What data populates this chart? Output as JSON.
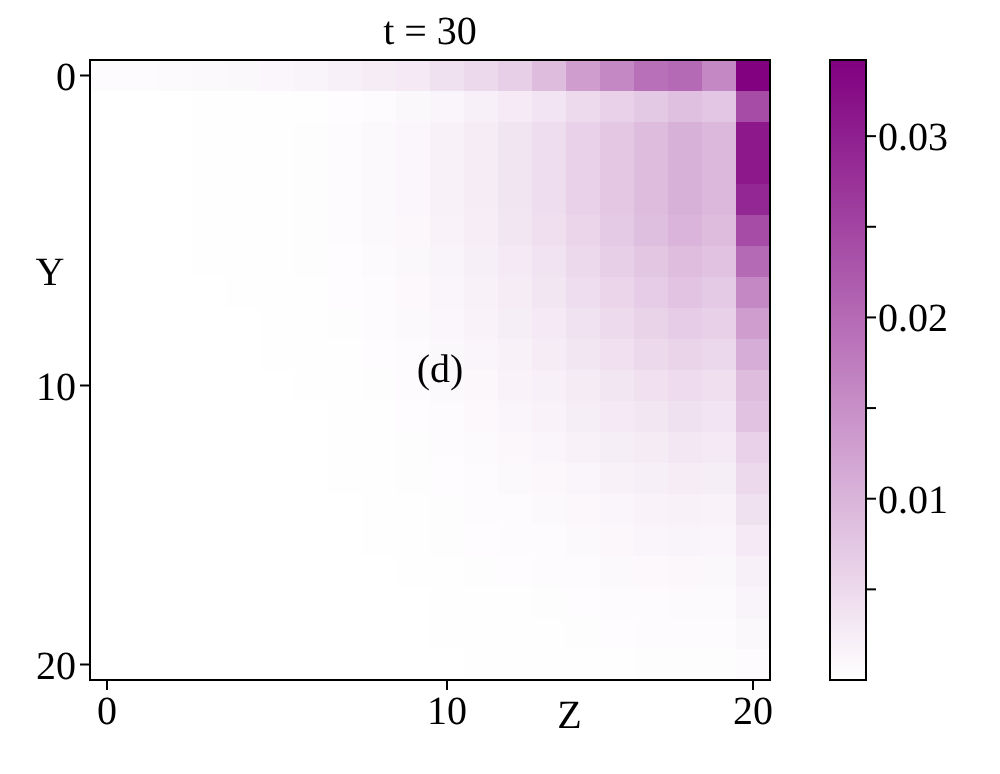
{
  "chart_data": {
    "type": "heatmap",
    "title": "t = 30",
    "xlabel": "Z",
    "ylabel": "Y",
    "annotations": [
      "(d)"
    ],
    "color": "#800080",
    "categories": [
      "0",
      null,
      null,
      null,
      null,
      null,
      null,
      null,
      null,
      null,
      "10",
      null,
      null,
      null,
      null,
      null,
      null,
      null,
      null,
      "20"
    ],
    "y_categories": [
      "0",
      null,
      null,
      null,
      null,
      null,
      null,
      null,
      null,
      null,
      "10",
      null,
      null,
      null,
      null,
      null,
      null,
      null,
      null,
      "20"
    ],
    "clim": [
      0,
      0.0342
    ],
    "cticks": [
      {
        "value": 0.005,
        "label": null
      },
      0.01,
      {
        "value": 0.015,
        "label": null
      },
      0.02,
      {
        "value": 0.025,
        "label": null
      },
      0.03
    ],
    "cells": [
      [
        0.0005,
        0.0006,
        0.0007,
        0.0008,
        0.001,
        0.0012,
        0.0015,
        0.002,
        0.0025,
        0.003,
        0.004,
        0.005,
        0.0065,
        0.009,
        0.013,
        0.016,
        0.019,
        0.02,
        0.016,
        0.034
      ],
      [
        0,
        0,
        0,
        0.0001,
        0.0001,
        0.0002,
        0.0002,
        0.0004,
        0.0006,
        0.001,
        0.0014,
        0.002,
        0.0028,
        0.0036,
        0.0048,
        0.006,
        0.0072,
        0.0084,
        0.0076,
        0.024
      ],
      [
        0,
        0,
        0,
        0.0001,
        0.0001,
        0.0002,
        0.0003,
        0.0005,
        0.0008,
        0.0012,
        0.0018,
        0.0025,
        0.0035,
        0.0045,
        0.006,
        0.0075,
        0.009,
        0.0105,
        0.0095,
        0.031
      ],
      [
        0,
        0,
        0,
        0.0001,
        0.0001,
        0.0002,
        0.0003,
        0.0005,
        0.0008,
        0.0012,
        0.0018,
        0.0025,
        0.0035,
        0.0045,
        0.006,
        0.0075,
        0.009,
        0.0105,
        0.0095,
        0.031
      ],
      [
        0,
        0,
        0,
        0.0001,
        0.0001,
        0.0002,
        0.0003,
        0.0005,
        0.0008,
        0.0012,
        0.0018,
        0.0025,
        0.0035,
        0.0045,
        0.006,
        0.0075,
        0.009,
        0.0105,
        0.0095,
        0.029
      ],
      [
        0,
        0,
        0,
        0.0001,
        0.0001,
        0.0002,
        0.0003,
        0.0005,
        0.0008,
        0.0011,
        0.0017,
        0.0024,
        0.0033,
        0.0043,
        0.0057,
        0.0071,
        0.0086,
        0.01,
        0.009,
        0.024
      ],
      [
        0,
        0,
        0,
        0.0001,
        0.0001,
        0.0002,
        0.0003,
        0.0004,
        0.0007,
        0.001,
        0.0015,
        0.0021,
        0.003,
        0.0038,
        0.0051,
        0.0064,
        0.0077,
        0.0089,
        0.0081,
        0.02
      ],
      [
        0,
        0,
        0,
        0,
        0.0001,
        0.0001,
        0.0002,
        0.0004,
        0.0006,
        0.0009,
        0.0014,
        0.0019,
        0.0026,
        0.0034,
        0.0045,
        0.0056,
        0.0068,
        0.0079,
        0.0071,
        0.016
      ],
      [
        0,
        0,
        0,
        0,
        0,
        0.0001,
        0.0002,
        0.0003,
        0.0005,
        0.0008,
        0.0012,
        0.0016,
        0.0023,
        0.0029,
        0.0039,
        0.0049,
        0.0059,
        0.0068,
        0.0062,
        0.013
      ],
      [
        0,
        0,
        0,
        0,
        0,
        0.0001,
        0.0001,
        0.0002,
        0.0004,
        0.0006,
        0.001,
        0.0014,
        0.0019,
        0.0025,
        0.0033,
        0.0041,
        0.005,
        0.0058,
        0.0052,
        0.011
      ],
      [
        0,
        0,
        0,
        0,
        0,
        0,
        0.0001,
        0.0002,
        0.0003,
        0.0005,
        0.0008,
        0.0011,
        0.0016,
        0.002,
        0.0027,
        0.0034,
        0.0041,
        0.0047,
        0.0043,
        0.009
      ],
      [
        0,
        0,
        0,
        0,
        0,
        0,
        0,
        0.0001,
        0.0002,
        0.0004,
        0.0006,
        0.0009,
        0.0013,
        0.0017,
        0.0023,
        0.0029,
        0.0034,
        0.004,
        0.0036,
        0.008
      ],
      [
        0,
        0,
        0,
        0,
        0,
        0,
        0,
        0.0001,
        0.0002,
        0.0003,
        0.0005,
        0.0007,
        0.0011,
        0.0014,
        0.0018,
        0.0023,
        0.0027,
        0.0032,
        0.0029,
        0.006
      ],
      [
        0,
        0,
        0,
        0,
        0,
        0,
        0,
        0.0001,
        0.0002,
        0.0003,
        0.0004,
        0.0006,
        0.0008,
        0.0011,
        0.0014,
        0.0018,
        0.0022,
        0.0025,
        0.0023,
        0.005
      ],
      [
        0,
        0,
        0,
        0,
        0,
        0,
        0,
        0,
        0.0001,
        0.0002,
        0.0003,
        0.0005,
        0.0006,
        0.0008,
        0.0011,
        0.0014,
        0.0016,
        0.0019,
        0.0017,
        0.004
      ],
      [
        0,
        0,
        0,
        0,
        0,
        0,
        0,
        0,
        0.0001,
        0.0002,
        0.0003,
        0.0004,
        0.0005,
        0.0006,
        0.0008,
        0.0011,
        0.0013,
        0.0015,
        0.0013,
        0.003
      ],
      [
        0,
        0,
        0,
        0,
        0,
        0,
        0,
        0,
        0,
        0.0001,
        0.0002,
        0.0003,
        0.0004,
        0.0005,
        0.0006,
        0.0008,
        0.0009,
        0.0011,
        0.001,
        0.002
      ],
      [
        0,
        0,
        0,
        0,
        0,
        0,
        0,
        0,
        0,
        0,
        0.0001,
        0.0002,
        0.0002,
        0.0003,
        0.0004,
        0.0005,
        0.0006,
        0.0007,
        0.0007,
        0.0015
      ],
      [
        0,
        0,
        0,
        0,
        0,
        0,
        0,
        0,
        0,
        0,
        0.0001,
        0.0001,
        0.0002,
        0.0002,
        0.0003,
        0.0004,
        0.0005,
        0.0005,
        0.0005,
        0.001
      ],
      [
        0,
        0,
        0,
        0,
        0,
        0,
        0,
        0,
        0,
        0,
        0,
        0.0001,
        0.0001,
        0.0001,
        0.0002,
        0.0002,
        0.0003,
        0.0003,
        0.0003,
        0.0005
      ]
    ]
  }
}
